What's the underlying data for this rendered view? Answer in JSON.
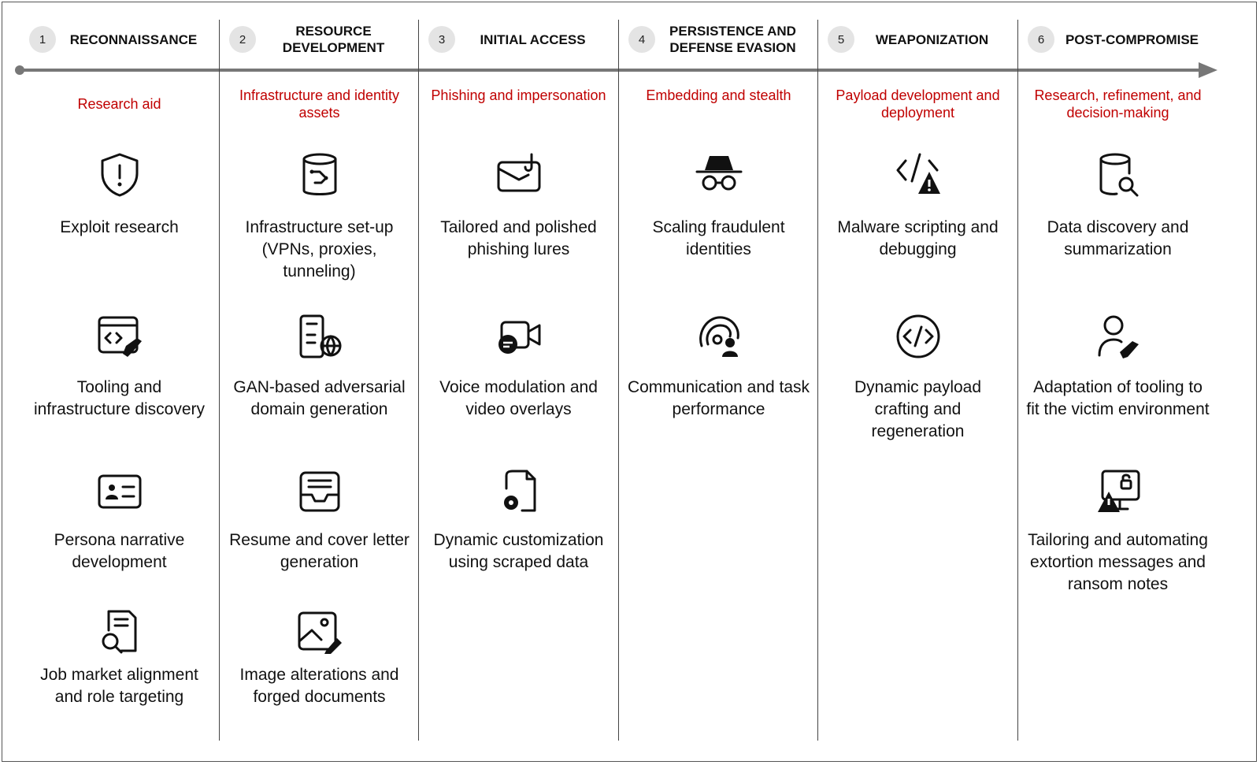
{
  "colors": {
    "accent": "#c00000",
    "timeline": "#777777",
    "number_bg": "#e4e4e4"
  },
  "phases": [
    {
      "number": "1",
      "title": "RECONNAISSANCE",
      "subtitle": "Research aid",
      "items": [
        {
          "icon": "shield-alert-icon",
          "label": "Exploit research"
        },
        {
          "icon": "code-window-wrench-icon",
          "label": "Tooling and infrastructure discovery"
        },
        {
          "icon": "id-card-icon",
          "label": "Persona narrative development"
        },
        {
          "icon": "document-search-icon",
          "label": "Job market alignment and role targeting"
        }
      ]
    },
    {
      "number": "2",
      "title": "RESOURCE DEVELOPMENT",
      "subtitle": "Infrastructure and identity assets",
      "items": [
        {
          "icon": "database-circuit-icon",
          "label": "Infrastructure set-up (VPNs, proxies, tunneling)"
        },
        {
          "icon": "server-globe-icon",
          "label": "GAN-based adversarial domain generation"
        },
        {
          "icon": "inbox-document-icon",
          "label": "Resume and cover letter generation"
        },
        {
          "icon": "image-edit-icon",
          "label": "Image alterations and forged documents"
        }
      ]
    },
    {
      "number": "3",
      "title": "INITIAL ACCESS",
      "subtitle": "Phishing and impersonation",
      "items": [
        {
          "icon": "mail-hook-icon",
          "label": "Tailored and polished phishing lures"
        },
        {
          "icon": "video-chat-icon",
          "label": "Voice modulation and video overlays"
        },
        {
          "icon": "document-gear-icon",
          "label": "Dynamic customization using scraped data"
        }
      ]
    },
    {
      "number": "4",
      "title": "PERSISTENCE AND DEFENSE EVASION",
      "subtitle": "Embedding and stealth",
      "items": [
        {
          "icon": "incognito-icon",
          "label": "Scaling fraudulent identities"
        },
        {
          "icon": "broadcast-person-icon",
          "label": "Communication and task performance"
        }
      ]
    },
    {
      "number": "5",
      "title": "WEAPONIZATION",
      "subtitle": "Payload development and deployment",
      "items": [
        {
          "icon": "code-warning-icon",
          "label": "Malware scripting and debugging"
        },
        {
          "icon": "code-circle-icon",
          "label": "Dynamic payload crafting and regeneration"
        }
      ]
    },
    {
      "number": "6",
      "title": "POST-COMPROMISE",
      "subtitle": "Research, refinement, and decision-making",
      "items": [
        {
          "icon": "database-search-icon",
          "label": "Data discovery and summarization"
        },
        {
          "icon": "person-wrench-icon",
          "label": "Adaptation of tooling to fit the victim environment"
        },
        {
          "icon": "monitor-lock-warning-icon",
          "label": "Tailoring and automating extortion messages and ransom notes"
        }
      ]
    }
  ]
}
